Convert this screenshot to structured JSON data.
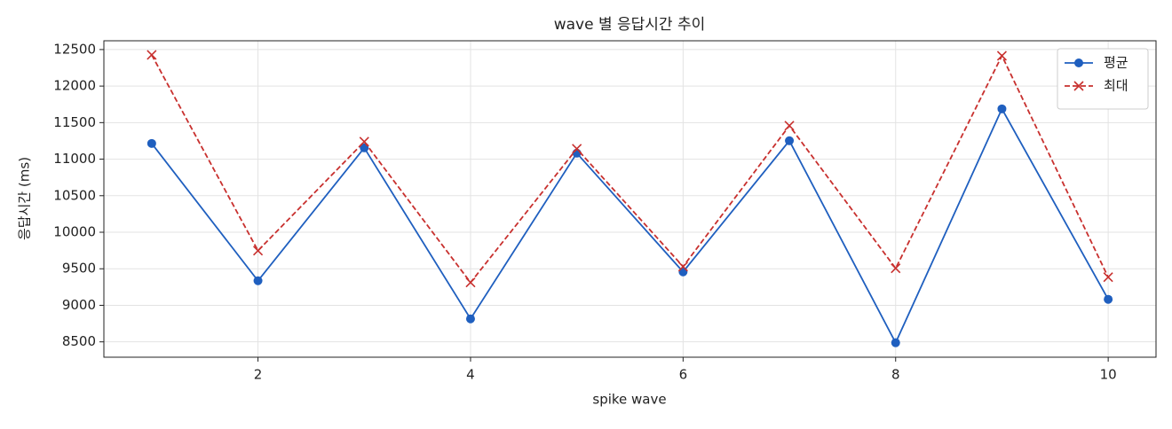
{
  "chart_data": {
    "type": "line",
    "title": "wave 별 응답시간 추이",
    "x_label": "spike wave",
    "y_label": "응답시간 (ms)",
    "x": [
      1,
      2,
      3,
      4,
      5,
      6,
      7,
      8,
      9,
      10
    ],
    "series": [
      {
        "name": "평균",
        "color": "#1f5fbf",
        "marker": "o",
        "linestyle": "solid",
        "values": [
          11215,
          9336,
          11155,
          8815,
          11082,
          9458,
          11252,
          8488,
          11688,
          9082
        ]
      },
      {
        "name": "최대",
        "color": "#c8302e",
        "marker": "x",
        "linestyle": "dashed",
        "values": [
          12427,
          9748,
          11239,
          9312,
          11142,
          9530,
          11458,
          9506,
          12415,
          9385
        ]
      }
    ],
    "xlim": [
      0.55,
      10.45
    ],
    "ylim": [
      8290,
      12620
    ],
    "xticks": [
      2,
      4,
      6,
      8,
      10
    ],
    "yticks": [
      8500,
      9000,
      9500,
      10000,
      10500,
      11000,
      11500,
      12000,
      12500
    ],
    "grid": true,
    "legend": "upper right"
  }
}
